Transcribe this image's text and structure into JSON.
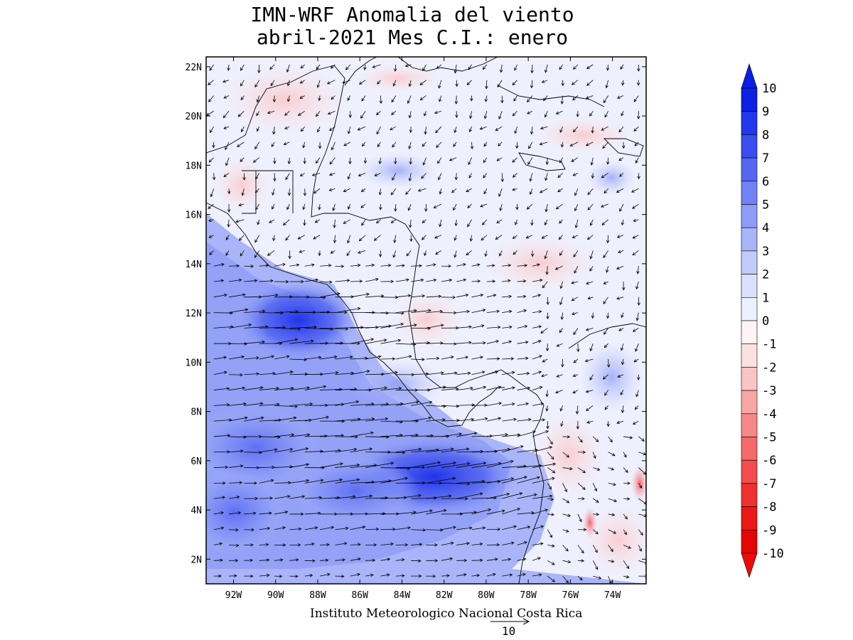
{
  "map": {
    "title_line1": "IMN-WRF Anomalia del viento",
    "title_line2": "abril-2021 Mes C.I.: enero",
    "credit": "Instituto Meteorologico Nacional Costa Rica",
    "reference_vector_label": "10",
    "lon_range": [
      -93.3,
      -72.4
    ],
    "lat_range": [
      1.0,
      22.4
    ],
    "lat_ticks": [
      {
        "value": 2,
        "label": "2N"
      },
      {
        "value": 4,
        "label": "4N"
      },
      {
        "value": 6,
        "label": "6N"
      },
      {
        "value": 8,
        "label": "8N"
      },
      {
        "value": 10,
        "label": "10N"
      },
      {
        "value": 12,
        "label": "12N"
      },
      {
        "value": 14,
        "label": "14N"
      },
      {
        "value": 16,
        "label": "16N"
      },
      {
        "value": 18,
        "label": "18N"
      },
      {
        "value": 20,
        "label": "20N"
      },
      {
        "value": 22,
        "label": "22N"
      }
    ],
    "lon_ticks": [
      {
        "value": -92,
        "label": "92W"
      },
      {
        "value": -90,
        "label": "90W"
      },
      {
        "value": -88,
        "label": "88W"
      },
      {
        "value": -86,
        "label": "86W"
      },
      {
        "value": -84,
        "label": "84W"
      },
      {
        "value": -82,
        "label": "82W"
      },
      {
        "value": -80,
        "label": "80W"
      },
      {
        "value": -78,
        "label": "78W"
      },
      {
        "value": -76,
        "label": "76W"
      },
      {
        "value": -74,
        "label": "74W"
      }
    ]
  },
  "colorbar": {
    "labels": [
      "10",
      "9",
      "8",
      "7",
      "6",
      "5",
      "4",
      "3",
      "2",
      "1",
      "0",
      "-1",
      "-2",
      "-3",
      "-4",
      "-5",
      "-6",
      "-7",
      "-8",
      "-9",
      "-10"
    ],
    "colors": [
      "#0d20e6",
      "#2236eb",
      "#3a4def",
      "#5566f2",
      "#7182f4",
      "#8d9cf6",
      "#a9b5f8",
      "#c3cbfa",
      "#dbe0fc",
      "#eef0fe",
      "#fff3f3",
      "#fde0e0",
      "#fbc4c4",
      "#f9a6a6",
      "#f78888",
      "#f46a6a",
      "#f24c4c",
      "#ef3030",
      "#ec1818",
      "#e60505"
    ],
    "top_arrow_color": "#0a1ee8",
    "bottom_arrow_color": "#ee0a0a"
  }
}
